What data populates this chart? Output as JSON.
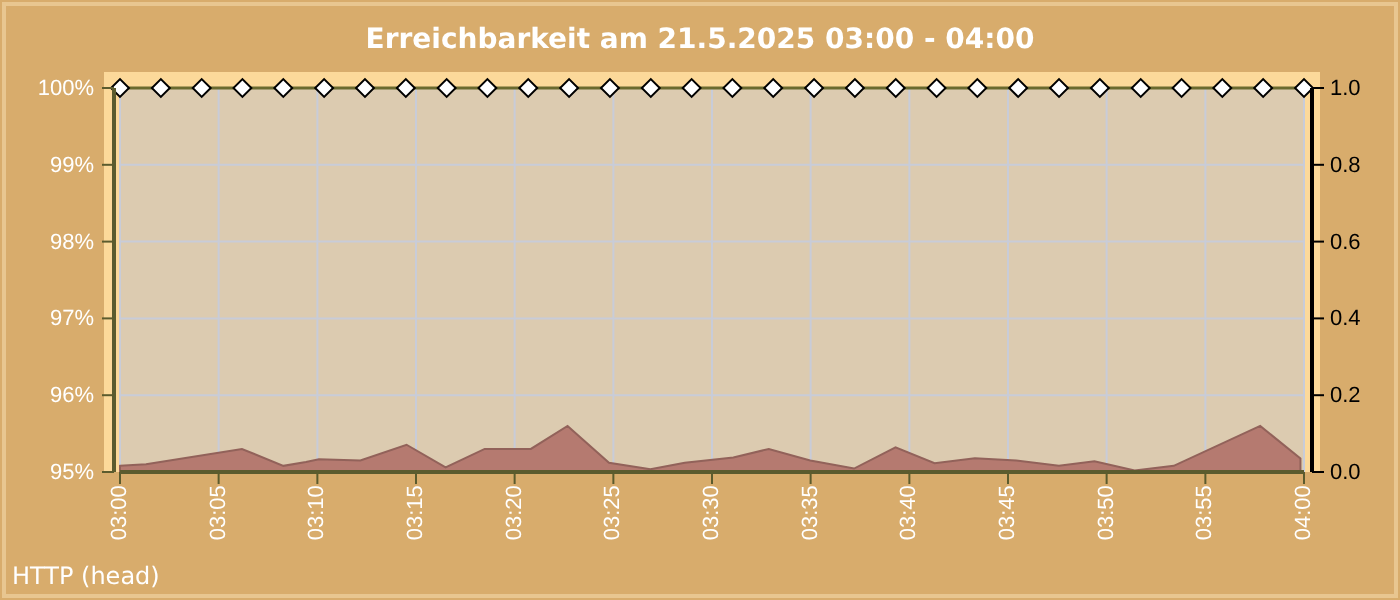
{
  "chart_data": {
    "type": "area",
    "title": "Erreichbarkeit am 21.5.2025 03:00 - 04:00",
    "annotations": [
      "HTTP (head)"
    ],
    "xlim": [
      3,
      4
    ],
    "xticks": [
      {
        "value": 3,
        "label": "03:00"
      },
      {
        "value": 3.0833,
        "label": "03:05"
      },
      {
        "value": 3.1667,
        "label": "03:10"
      },
      {
        "value": 3.25,
        "label": "03:15"
      },
      {
        "value": 3.3333,
        "label": "03:20"
      },
      {
        "value": 3.4167,
        "label": "03:25"
      },
      {
        "value": 3.5,
        "label": "03:30"
      },
      {
        "value": 3.5833,
        "label": "03:35"
      },
      {
        "value": 3.6667,
        "label": "03:40"
      },
      {
        "value": 3.75,
        "label": "03:45"
      },
      {
        "value": 3.8333,
        "label": "03:50"
      },
      {
        "value": 3.9167,
        "label": "03:55"
      },
      {
        "value": 4,
        "label": "04:00"
      }
    ],
    "ylim": [
      95,
      100
    ],
    "yticks": [
      {
        "value": 95,
        "label": "95%"
      },
      {
        "value": 96,
        "label": "96%"
      },
      {
        "value": 97,
        "label": "97%"
      },
      {
        "value": 98,
        "label": "98%"
      },
      {
        "value": 99,
        "label": "99%"
      },
      {
        "value": 100,
        "label": "100%"
      }
    ],
    "y2lim": [
      0,
      1
    ],
    "y2ticks": [
      {
        "value": 0,
        "label": "0.0"
      },
      {
        "value": 0.2,
        "label": "0.2"
      },
      {
        "value": 0.4,
        "label": "0.4"
      },
      {
        "value": 0.6,
        "label": "0.6"
      },
      {
        "value": 0.8,
        "label": "0.8"
      },
      {
        "value": 1,
        "label": "1.0"
      }
    ],
    "grid": true,
    "series": [
      {
        "axis": "y2",
        "color": "#b57a70",
        "x": [
          3,
          3.022,
          3.103,
          3.138,
          3.157,
          3.168,
          3.203,
          3.242,
          3.275,
          3.308,
          3.347,
          3.378,
          3.413,
          3.448,
          3.477,
          3.518,
          3.548,
          3.583,
          3.62,
          3.655,
          3.688,
          3.722,
          3.757,
          3.793,
          3.823,
          3.857,
          3.89,
          3.963,
          3.997
        ],
        "values": [
          0.016,
          0.02,
          0.06,
          0.016,
          0.026,
          0.033,
          0.03,
          0.071,
          0.012,
          0.06,
          0.06,
          0.12,
          0.024,
          0.007,
          0.024,
          0.038,
          0.06,
          0.03,
          0.009,
          0.064,
          0.023,
          0.036,
          0.03,
          0.016,
          0.028,
          0.004,
          0.016,
          0.12,
          0.035
        ]
      },
      {
        "type": "line",
        "marker": "diamond",
        "color": "#6b6a2e",
        "x": [
          3,
          3.0345,
          3.069,
          3.1034,
          3.1379,
          3.1724,
          3.2069,
          3.2414,
          3.2759,
          3.3103,
          3.3448,
          3.3793,
          3.4138,
          3.4483,
          3.4828,
          3.5172,
          3.5517,
          3.5862,
          3.6207,
          3.6552,
          3.6897,
          3.7241,
          3.7586,
          3.7931,
          3.8276,
          3.8621,
          3.8966,
          3.931,
          3.9655,
          4
        ],
        "values": [
          100,
          100,
          100,
          100,
          100,
          100,
          100,
          100,
          100,
          100,
          100,
          100,
          100,
          100,
          100,
          100,
          100,
          100,
          100,
          100,
          100,
          100,
          100,
          100,
          100,
          100,
          100,
          100,
          100,
          100
        ]
      }
    ]
  }
}
